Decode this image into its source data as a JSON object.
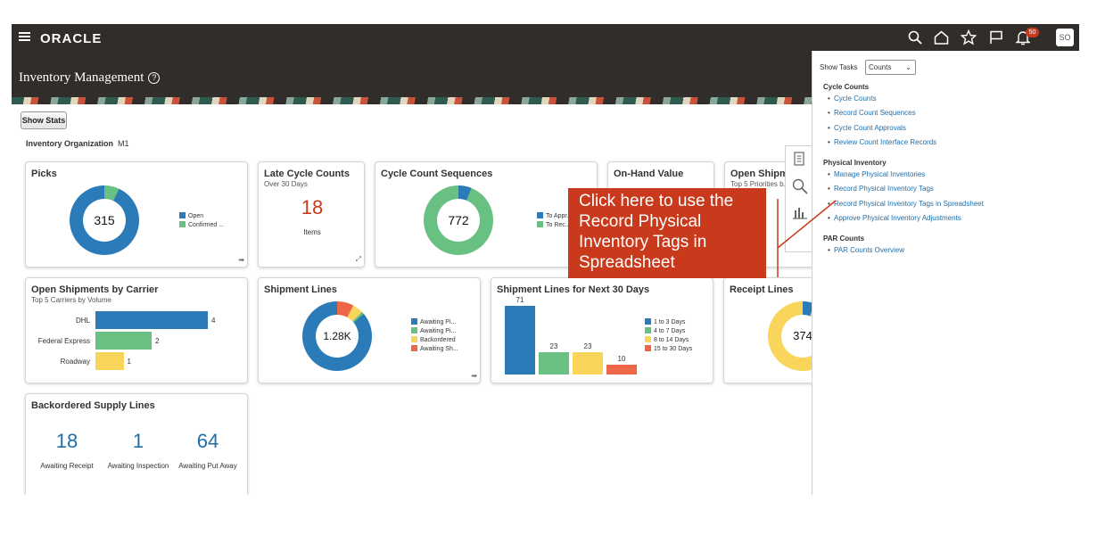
{
  "topbar": {
    "brand": "ORACLE",
    "notification_count": "50",
    "user_initials": "SO"
  },
  "page": {
    "title": "Inventory Management"
  },
  "show_stats_label": "Show Stats",
  "org": {
    "label": "Inventory Organization",
    "value": "M1"
  },
  "tiles": {
    "picks": {
      "title": "Picks",
      "center": "315",
      "legend": [
        "Open",
        "Confirmed ..."
      ]
    },
    "late_cycle": {
      "title": "Late Cycle Counts",
      "subtitle": "Over 30 Days",
      "value": "18",
      "caption": "Items"
    },
    "cycle_seq": {
      "title": "Cycle Count Sequences",
      "center": "772",
      "legend": [
        "To Appr...",
        "To Rec..."
      ]
    },
    "onhand": {
      "title": "On-Hand Value"
    },
    "open_ship_pri": {
      "title": "Open Shipm...",
      "subtitle": "Top 5 Priorities b...",
      "partial": "No"
    },
    "carrier": {
      "title": "Open Shipments by Carrier",
      "subtitle": "Top 5 Carriers by Volume",
      "bars": [
        {
          "label": "DHL",
          "value": "4"
        },
        {
          "label": "Federal Express",
          "value": "2"
        },
        {
          "label": "Roadway",
          "value": "1"
        }
      ]
    },
    "shipment_lines": {
      "title": "Shipment Lines",
      "center": "1.28K",
      "legend": [
        "Awaiting Pi...",
        "Awaiting Pi...",
        "Backordered",
        "Awaiting Sh..."
      ]
    },
    "next30": {
      "title": "Shipment Lines for Next 30 Days",
      "bars": [
        {
          "label": "71",
          "value": 71
        },
        {
          "label": "23",
          "value": 23
        },
        {
          "label": "23",
          "value": 23
        },
        {
          "label": "10",
          "value": 10
        }
      ],
      "legend": [
        "1 to 3 Days",
        "4 to 7 Days",
        "8 to 14 Days",
        "15 to 30 Days"
      ]
    },
    "receipt": {
      "title": "Receipt Lines",
      "center": "374"
    },
    "backordered": {
      "title": "Backordered Supply Lines",
      "stats": [
        {
          "value": "18",
          "label": "Awaiting Receipt"
        },
        {
          "value": "1",
          "label": "Awaiting Inspection"
        },
        {
          "value": "64",
          "label": "Awaiting Put Away"
        }
      ]
    }
  },
  "tasks": {
    "show_label": "Show Tasks",
    "selected": "Counts",
    "groups": [
      {
        "heading": "Cycle Counts",
        "items": [
          "Cycle Counts",
          "Record Count Sequences",
          "Cycle Count Approvals",
          "Review Count Interface Records"
        ]
      },
      {
        "heading": "Physical Inventory",
        "items": [
          "Manage Physical Inventories",
          "Record Physical Inventory Tags",
          "Record Physical Inventory Tags in Spreadsheet",
          "Approve Physical Inventory Adjustments"
        ]
      },
      {
        "heading": "PAR Counts",
        "items": [
          "PAR Counts Overview"
        ]
      }
    ]
  },
  "callout": {
    "text": "Click here to use the Record Physical Inventory Tags in Spreadsheet"
  },
  "colors": {
    "blue": "#2b7bb9",
    "green": "#68c182",
    "yellow": "#fad55c",
    "red": "#ed6647",
    "header": "#312d2a",
    "callout": "#c9391b"
  }
}
